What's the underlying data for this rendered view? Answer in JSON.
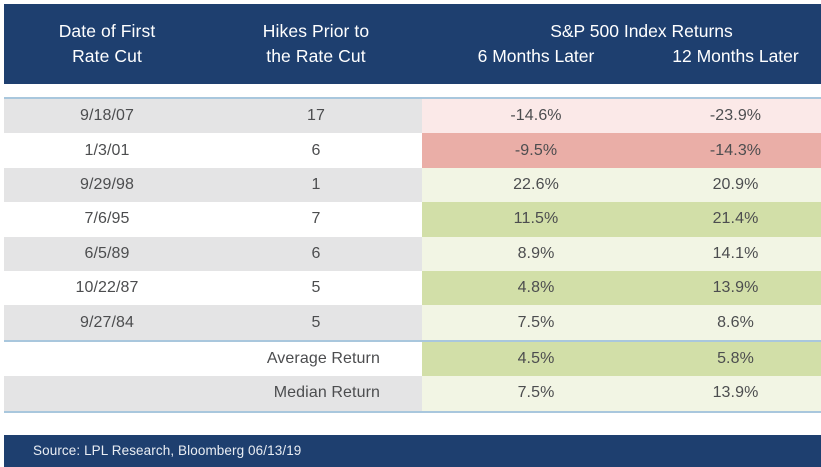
{
  "table": {
    "header": {
      "col1_line1": "Date of First",
      "col1_line2": "Rate Cut",
      "col2_line1": "Hikes Prior to",
      "col2_line2": "the Rate Cut",
      "group_title": "S&P 500 Index Returns",
      "col3": "6 Months Later",
      "col4": "12 Months Later"
    },
    "rows": [
      {
        "date": "9/18/07",
        "hikes": "17",
        "six_month": "-14.6%",
        "twelve_month": "-23.9%"
      },
      {
        "date": "1/3/01",
        "hikes": "6",
        "six_month": "-9.5%",
        "twelve_month": "-14.3%"
      },
      {
        "date": "9/29/98",
        "hikes": "1",
        "six_month": "22.6%",
        "twelve_month": "20.9%"
      },
      {
        "date": "7/6/95",
        "hikes": "7",
        "six_month": "11.5%",
        "twelve_month": "21.4%"
      },
      {
        "date": "6/5/89",
        "hikes": "6",
        "six_month": "8.9%",
        "twelve_month": "14.1%"
      },
      {
        "date": "10/22/87",
        "hikes": "5",
        "six_month": "4.8%",
        "twelve_month": "13.9%"
      },
      {
        "date": "9/27/84",
        "hikes": "5",
        "six_month": "7.5%",
        "twelve_month": "8.6%"
      }
    ],
    "summary_rows": [
      {
        "label": "Average Return",
        "six_month": "4.5%",
        "twelve_month": "5.8%"
      },
      {
        "label": "Median Return",
        "six_month": "7.5%",
        "twelve_month": "13.9%"
      }
    ]
  },
  "footer": {
    "source": "Source: LPL Research, Bloomberg 06/13/19"
  },
  "colors": {
    "header_navy": "#1E3F6F",
    "stripe_gray": "#E4E4E5",
    "negative_light": "#FBE9E8",
    "negative_dark": "#EAAEA7",
    "positive_light": "#F2F5E4",
    "positive_dark": "#D2DFA8",
    "divider_blue": "#A9C7DD",
    "body_text": "#4C4D4F"
  },
  "chart_data": {
    "type": "table",
    "title": "S&P 500 Index Returns",
    "columns": [
      "Date of First Rate Cut",
      "Hikes Prior to the Rate Cut",
      "6 Months Later",
      "12 Months Later"
    ],
    "rows": [
      [
        "9/18/07",
        17,
        -14.6,
        -23.9
      ],
      [
        "1/3/01",
        6,
        -9.5,
        -14.3
      ],
      [
        "9/29/98",
        1,
        22.6,
        20.9
      ],
      [
        "7/6/95",
        7,
        11.5,
        21.4
      ],
      [
        "6/5/89",
        6,
        8.9,
        14.1
      ],
      [
        "10/22/87",
        5,
        4.8,
        13.9
      ],
      [
        "9/27/84",
        5,
        7.5,
        8.6
      ]
    ],
    "summary": {
      "average_return": [
        4.5,
        5.8
      ],
      "median_return": [
        7.5,
        13.9
      ]
    },
    "units": "percent",
    "source": "Source: LPL Research, Bloomberg 06/13/19"
  }
}
